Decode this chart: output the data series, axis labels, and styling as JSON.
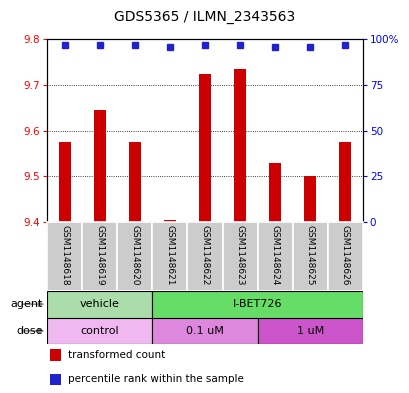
{
  "title": "GDS5365 / ILMN_2343563",
  "samples": [
    "GSM1148618",
    "GSM1148619",
    "GSM1148620",
    "GSM1148621",
    "GSM1148622",
    "GSM1148623",
    "GSM1148624",
    "GSM1148625",
    "GSM1148626"
  ],
  "bar_values": [
    9.575,
    9.645,
    9.575,
    9.405,
    9.725,
    9.735,
    9.53,
    9.5,
    9.575
  ],
  "percentile_values": [
    97,
    97,
    97,
    96,
    97,
    97,
    96,
    96,
    97
  ],
  "bar_color": "#cc0000",
  "dot_color": "#2222cc",
  "ylim_left": [
    9.4,
    9.8
  ],
  "ylim_right": [
    0,
    100
  ],
  "yticks_left": [
    9.4,
    9.5,
    9.6,
    9.7,
    9.8
  ],
  "yticks_right": [
    0,
    25,
    50,
    75,
    100
  ],
  "ytick_labels_right": [
    "0",
    "25",
    "50",
    "75",
    "100%"
  ],
  "agent_groups": [
    {
      "label": "vehicle",
      "start": 0,
      "end": 3,
      "color": "#aaddaa"
    },
    {
      "label": "I-BET726",
      "start": 3,
      "end": 9,
      "color": "#66dd66"
    }
  ],
  "dose_groups": [
    {
      "label": "control",
      "start": 0,
      "end": 3,
      "color": "#f0b8f0"
    },
    {
      "label": "0.1 uM",
      "start": 3,
      "end": 6,
      "color": "#dd88dd"
    },
    {
      "label": "1 uM",
      "start": 6,
      "end": 9,
      "color": "#cc55cc"
    }
  ],
  "legend_items": [
    {
      "color": "#cc0000",
      "label": "transformed count"
    },
    {
      "color": "#2222cc",
      "label": "percentile rank within the sample"
    }
  ],
  "bar_width": 0.35,
  "sample_bg_color": "#cccccc",
  "n_samples": 9
}
